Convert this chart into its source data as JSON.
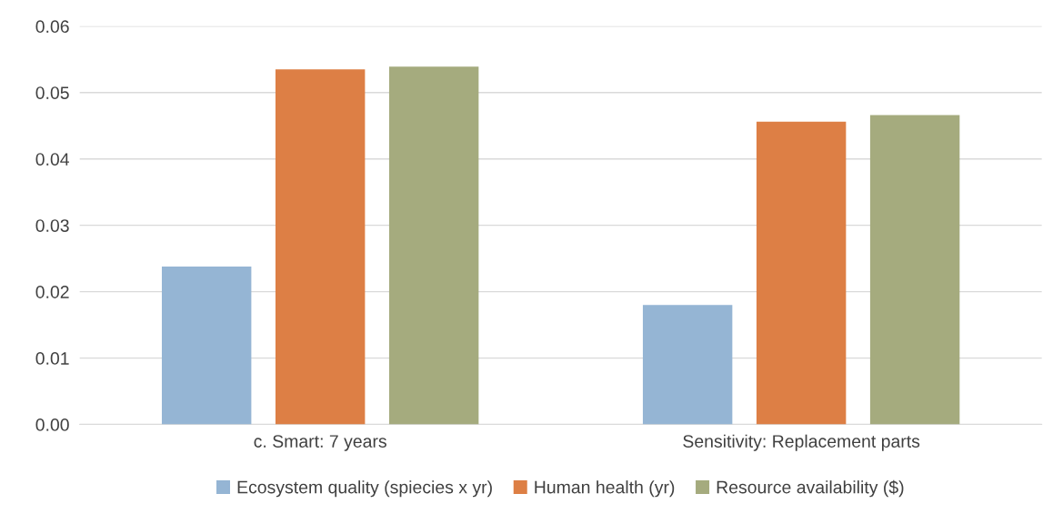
{
  "chart_data": {
    "type": "bar",
    "categories": [
      "c. Smart: 7 years",
      "Sensitivity: Replacement parts"
    ],
    "series": [
      {
        "name": "Ecosystem quality (spiecies x yr)",
        "color": "#95b5d4",
        "values": [
          0.0238,
          0.018
        ]
      },
      {
        "name": "Human health (yr)",
        "color": "#dd7f45",
        "values": [
          0.0535,
          0.0456
        ]
      },
      {
        "name": "Resource availability ($)",
        "color": "#a5ab7e",
        "values": [
          0.0539,
          0.0466
        ]
      }
    ],
    "ylim": [
      0,
      0.06
    ],
    "yticks": [
      {
        "value": 0,
        "label": "0.00"
      },
      0.01,
      0.02,
      0.03,
      0.04,
      0.05,
      0.06
    ],
    "grid": "y",
    "legend": "bottom"
  }
}
